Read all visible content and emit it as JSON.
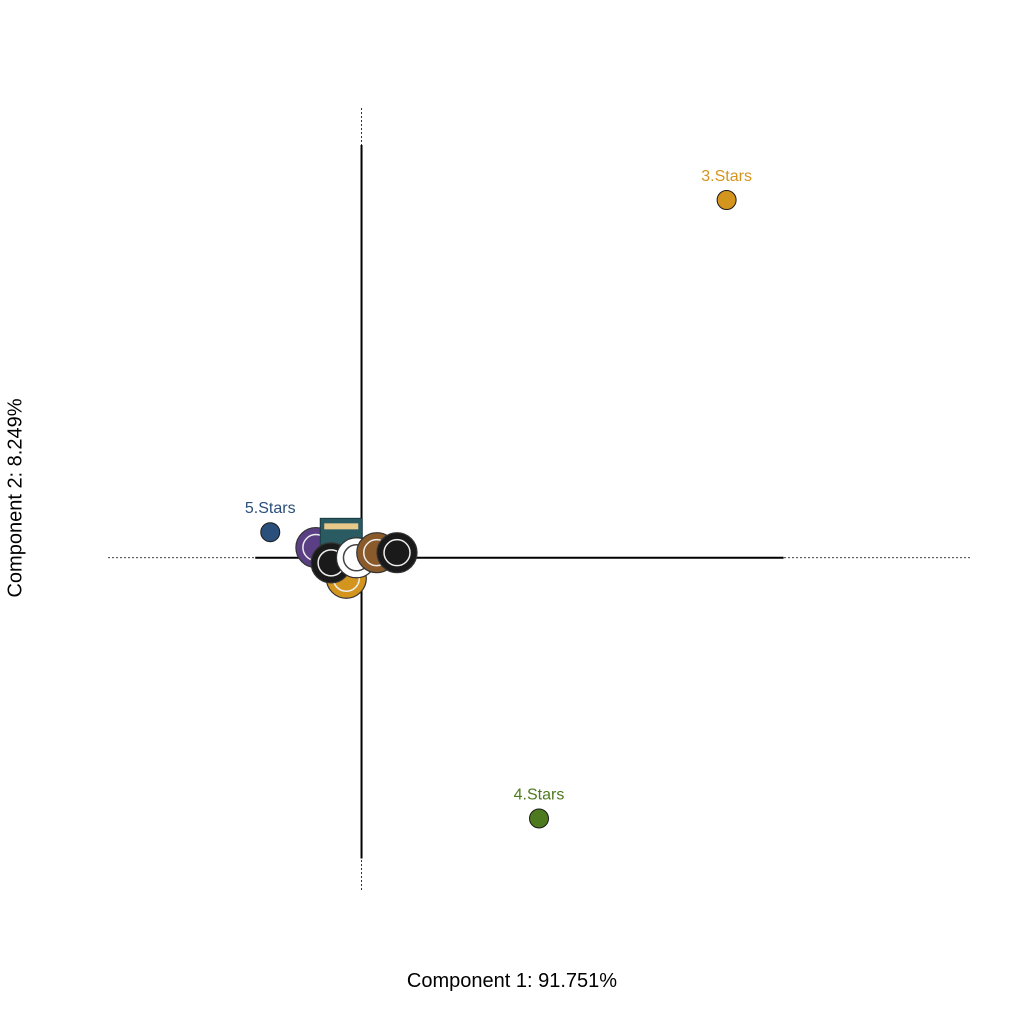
{
  "chart_data": {
    "type": "scatter",
    "title": "",
    "xlabel": "Component 1: 91.751%",
    "ylabel": "Component 2: 8.249%",
    "xlim": [
      -0.5,
      1.2
    ],
    "ylim": [
      -0.65,
      0.88
    ],
    "grid": false,
    "points": [
      {
        "label": "3.Stars",
        "x": 0.72,
        "y": 0.7,
        "color": "#d4951e"
      },
      {
        "label": "5.Stars",
        "x": -0.18,
        "y": 0.05,
        "color": "#2a4f7a"
      },
      {
        "label": "4.Stars",
        "x": 0.35,
        "y": -0.51,
        "color": "#4e7a1f"
      }
    ],
    "logo_cluster": [
      {
        "name": "logo-purple",
        "x": -0.09,
        "y": 0.02,
        "color": "#5a3f85"
      },
      {
        "name": "logo-teal",
        "x": -0.04,
        "y": 0.04,
        "color": "#2a5b63"
      },
      {
        "name": "logo-orange",
        "x": -0.03,
        "y": -0.04,
        "color": "#d4951e"
      },
      {
        "name": "logo-black-1",
        "x": -0.06,
        "y": -0.01,
        "color": "#1a1a1a"
      },
      {
        "name": "logo-rahr",
        "x": -0.01,
        "y": 0.0,
        "color": "#ffffff"
      },
      {
        "name": "logo-brown",
        "x": 0.03,
        "y": 0.01,
        "color": "#8a5a2b"
      },
      {
        "name": "logo-black-2",
        "x": 0.07,
        "y": 0.01,
        "color": "#1a1a1a"
      }
    ]
  }
}
